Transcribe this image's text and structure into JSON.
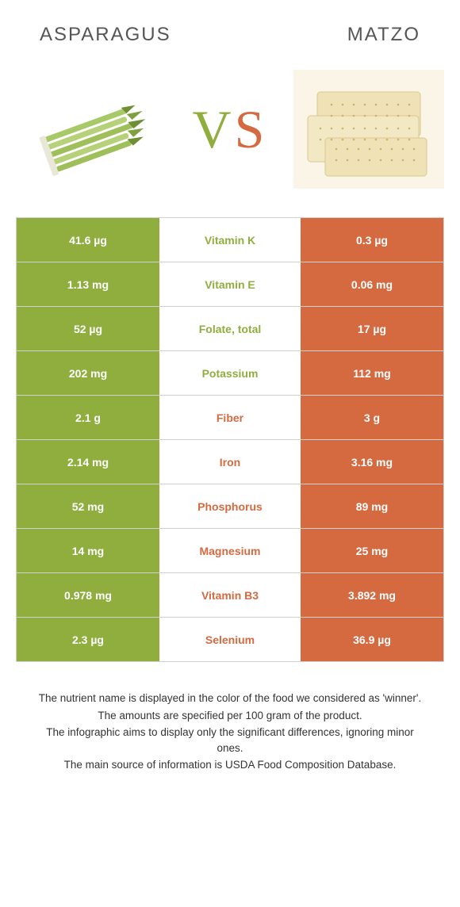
{
  "colors": {
    "green": "#8fae3e",
    "orange": "#d56a41",
    "border": "#d0d0d0",
    "text": "#333333",
    "row_text": "#ffffff"
  },
  "header": {
    "left_title": "Asparagus",
    "right_title": "Matzo"
  },
  "vs": {
    "v": "V",
    "s": "S"
  },
  "table": {
    "rows": [
      {
        "left": "41.6 µg",
        "label": "Vitamin K",
        "right": "0.3 µg",
        "winner": "left"
      },
      {
        "left": "1.13 mg",
        "label": "Vitamin E",
        "right": "0.06 mg",
        "winner": "left"
      },
      {
        "left": "52 µg",
        "label": "Folate, total",
        "right": "17 µg",
        "winner": "left"
      },
      {
        "left": "202 mg",
        "label": "Potassium",
        "right": "112 mg",
        "winner": "left"
      },
      {
        "left": "2.1 g",
        "label": "Fiber",
        "right": "3 g",
        "winner": "right"
      },
      {
        "left": "2.14 mg",
        "label": "Iron",
        "right": "3.16 mg",
        "winner": "right"
      },
      {
        "left": "52 mg",
        "label": "Phosphorus",
        "right": "89 mg",
        "winner": "right"
      },
      {
        "left": "14 mg",
        "label": "Magnesium",
        "right": "25 mg",
        "winner": "right"
      },
      {
        "left": "0.978 mg",
        "label": "Vitamin B3",
        "right": "3.892 mg",
        "winner": "right"
      },
      {
        "left": "2.3 µg",
        "label": "Selenium",
        "right": "36.9 µg",
        "winner": "right"
      }
    ]
  },
  "footer": {
    "line1": "The nutrient name is displayed in the color of the food we considered as 'winner'.",
    "line2": "The amounts are specified per 100 gram of the product.",
    "line3": "The infographic aims to display only the significant differences, ignoring minor ones.",
    "line4": "The main source of information is USDA Food Composition Database."
  }
}
